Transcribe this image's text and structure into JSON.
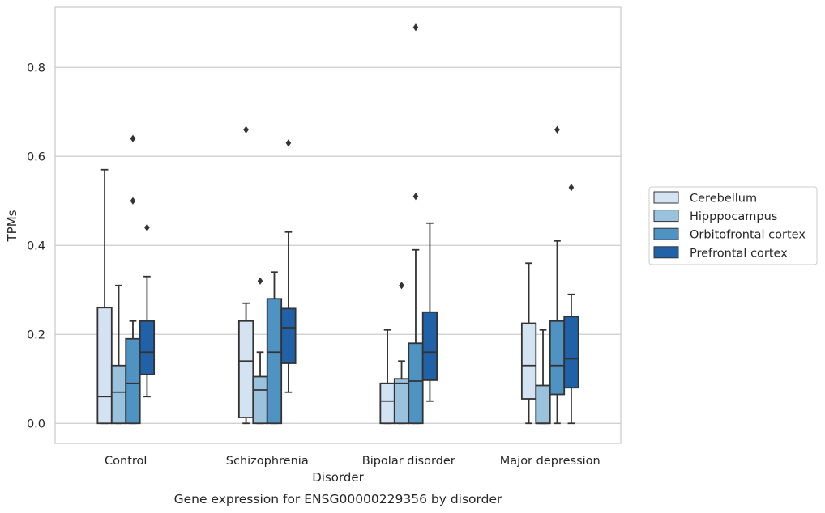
{
  "chart_data": {
    "type": "box",
    "title": "",
    "caption": "Gene expression for ENSG00000229356 by disorder",
    "xlabel": "Disorder",
    "ylabel": "TPMs",
    "ylim": [
      -0.045,
      0.935
    ],
    "yticks": [
      0.0,
      0.2,
      0.4,
      0.6,
      0.8
    ],
    "ytick_labels": [
      "0.0",
      "0.2",
      "0.4",
      "0.6",
      "0.8"
    ],
    "grid": "horizontal",
    "legend_position": "right",
    "categories": [
      "Control",
      "Schizophrenia",
      "Bipolar disorder",
      "Major depression"
    ],
    "series": [
      {
        "name": "Cerebellum",
        "color": "#d4e3f2",
        "boxes": [
          {
            "min": 0.0,
            "q1": 0.0,
            "median": 0.06,
            "q3": 0.26,
            "max": 0.57,
            "outliers": []
          },
          {
            "min": 0.0,
            "q1": 0.013,
            "median": 0.14,
            "q3": 0.23,
            "max": 0.27,
            "outliers": [
              0.66
            ]
          },
          {
            "min": 0.0,
            "q1": 0.0,
            "median": 0.05,
            "q3": 0.09,
            "max": 0.21,
            "outliers": []
          },
          {
            "min": 0.0,
            "q1": 0.055,
            "median": 0.13,
            "q3": 0.225,
            "max": 0.36,
            "outliers": []
          }
        ]
      },
      {
        "name": "Hipppocampus",
        "color": "#9ac2dc",
        "boxes": [
          {
            "min": 0.0,
            "q1": 0.0,
            "median": 0.07,
            "q3": 0.13,
            "max": 0.31,
            "outliers": []
          },
          {
            "min": 0.0,
            "q1": 0.0,
            "median": 0.075,
            "q3": 0.105,
            "max": 0.16,
            "outliers": [
              0.32
            ]
          },
          {
            "min": 0.0,
            "q1": 0.0,
            "median": 0.09,
            "q3": 0.1,
            "max": 0.14,
            "outliers": [
              0.31
            ]
          },
          {
            "min": 0.0,
            "q1": 0.0,
            "median": 0.0,
            "q3": 0.085,
            "max": 0.21,
            "outliers": []
          }
        ]
      },
      {
        "name": "Orbitofrontal cortex",
        "color": "#4e93c2",
        "boxes": [
          {
            "min": 0.0,
            "q1": 0.0,
            "median": 0.09,
            "q3": 0.19,
            "max": 0.23,
            "outliers": [
              0.5,
              0.64
            ]
          },
          {
            "min": 0.0,
            "q1": 0.0,
            "median": 0.16,
            "q3": 0.28,
            "max": 0.34,
            "outliers": []
          },
          {
            "min": 0.0,
            "q1": 0.0,
            "median": 0.095,
            "q3": 0.18,
            "max": 0.39,
            "outliers": [
              0.51,
              0.89
            ]
          },
          {
            "min": 0.0,
            "q1": 0.065,
            "median": 0.13,
            "q3": 0.23,
            "max": 0.41,
            "outliers": [
              0.66
            ]
          }
        ]
      },
      {
        "name": "Prefrontal cortex",
        "color": "#2061a8",
        "boxes": [
          {
            "min": 0.06,
            "q1": 0.11,
            "median": 0.16,
            "q3": 0.23,
            "max": 0.33,
            "outliers": [
              0.44
            ]
          },
          {
            "min": 0.07,
            "q1": 0.135,
            "median": 0.215,
            "q3": 0.258,
            "max": 0.43,
            "outliers": [
              0.63
            ]
          },
          {
            "min": 0.05,
            "q1": 0.097,
            "median": 0.16,
            "q3": 0.25,
            "max": 0.45,
            "outliers": []
          },
          {
            "min": 0.0,
            "q1": 0.08,
            "median": 0.145,
            "q3": 0.24,
            "max": 0.29,
            "outliers": [
              0.53
            ]
          }
        ]
      }
    ]
  },
  "colors": {
    "box_edge": "#333333",
    "grid": "#cccccc",
    "frame": "#cccccc",
    "text": "#262626"
  }
}
